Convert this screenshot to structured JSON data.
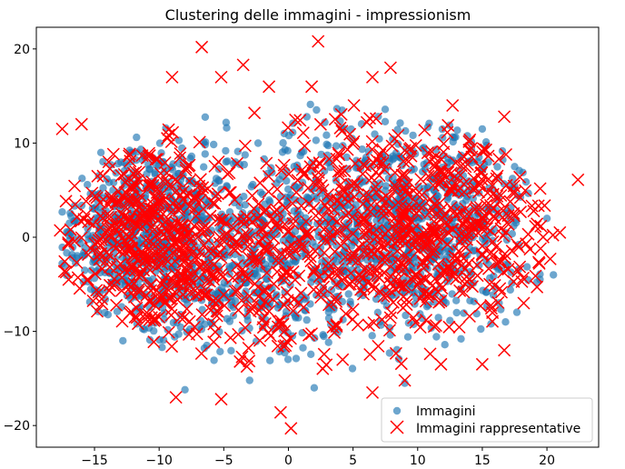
{
  "chart_data": {
    "type": "scatter",
    "title": "Clustering delle immagini - impressionism",
    "xlabel": "",
    "ylabel": "",
    "xlim": [
      -19.5,
      24.0
    ],
    "ylim": [
      -22.3,
      22.3
    ],
    "xticks": [
      -15,
      -10,
      -5,
      0,
      5,
      10,
      15,
      20
    ],
    "yticks": [
      -20,
      -10,
      0,
      10,
      20
    ],
    "grid": false,
    "legend_position": "lower-right",
    "series": [
      {
        "name": "Immagini",
        "marker": "circle",
        "color": "#1f77b4",
        "alpha": 0.65,
        "clusters": [
          {
            "cx": -11,
            "cy": 1,
            "sx": 3.6,
            "sy": 5.2,
            "n": 650
          },
          {
            "cx": 11,
            "cy": 1,
            "sx": 4.0,
            "sy": 5.2,
            "n": 600
          },
          {
            "cx": -2,
            "cy": -4,
            "sx": 4.2,
            "sy": 5.0,
            "n": 320
          },
          {
            "cx": 3,
            "cy": 3,
            "sx": 4.0,
            "sy": 5.5,
            "n": 280
          }
        ],
        "points": [
          {
            "x": -17.5,
            "y": -2.8
          },
          {
            "x": -16.2,
            "y": -0.2
          },
          {
            "x": -14.5,
            "y": 9
          },
          {
            "x": -12.8,
            "y": -11
          },
          {
            "x": -8.0,
            "y": -16.2
          },
          {
            "x": -3.0,
            "y": -15.2
          },
          {
            "x": 2.0,
            "y": -16.0
          },
          {
            "x": 15.0,
            "y": 11.5
          },
          {
            "x": 17.5,
            "y": 7.5
          },
          {
            "x": 20.0,
            "y": 2.0
          },
          {
            "x": 20.5,
            "y": -4.0
          },
          {
            "x": 9.0,
            "y": -15.5
          },
          {
            "x": 16.8,
            "y": -9.0
          }
        ]
      },
      {
        "name": "Immagini rappresentative",
        "marker": "x",
        "color": "#ff0000",
        "clusters": [
          {
            "cx": -11,
            "cy": 0,
            "sx": 3.6,
            "sy": 5.8,
            "n": 420
          },
          {
            "cx": 12,
            "cy": 1,
            "sx": 4.3,
            "sy": 5.3,
            "n": 420
          },
          {
            "cx": -3,
            "cy": -4,
            "sx": 4.4,
            "sy": 5.6,
            "n": 220
          },
          {
            "cx": 4,
            "cy": 3,
            "sx": 4.4,
            "sy": 6.0,
            "n": 190
          }
        ],
        "points": [
          {
            "x": -6.7,
            "y": 20.2
          },
          {
            "x": 2.3,
            "y": 20.8
          },
          {
            "x": 22.4,
            "y": 6.1
          },
          {
            "x": -0.6,
            "y": -18.6
          },
          {
            "x": 0.2,
            "y": -20.3
          },
          {
            "x": -8.7,
            "y": -17.0
          },
          {
            "x": -5.2,
            "y": -17.2
          },
          {
            "x": 6.5,
            "y": 17.0
          },
          {
            "x": 7.9,
            "y": 18.0
          },
          {
            "x": -17.5,
            "y": 11.5
          },
          {
            "x": -16.0,
            "y": 12.0
          },
          {
            "x": -17.0,
            "y": -4.5
          },
          {
            "x": 16.7,
            "y": 12.8
          },
          {
            "x": 12.7,
            "y": 14.0
          },
          {
            "x": 21.0,
            "y": 0.5
          },
          {
            "x": 18.2,
            "y": -7.0
          },
          {
            "x": 16.7,
            "y": -12.0
          },
          {
            "x": 15.0,
            "y": -13.5
          },
          {
            "x": 6.5,
            "y": -16.5
          },
          {
            "x": 9.0,
            "y": -15.2
          },
          {
            "x": -3.5,
            "y": 18.3
          },
          {
            "x": -1.5,
            "y": 16.0
          },
          {
            "x": 1.8,
            "y": 16.0
          },
          {
            "x": -9.0,
            "y": 17.0
          },
          {
            "x": -5.2,
            "y": 17.0
          },
          {
            "x": 4.2,
            "y": -13.0
          },
          {
            "x": 11.8,
            "y": -13.5
          }
        ]
      }
    ],
    "seed": 1234
  }
}
